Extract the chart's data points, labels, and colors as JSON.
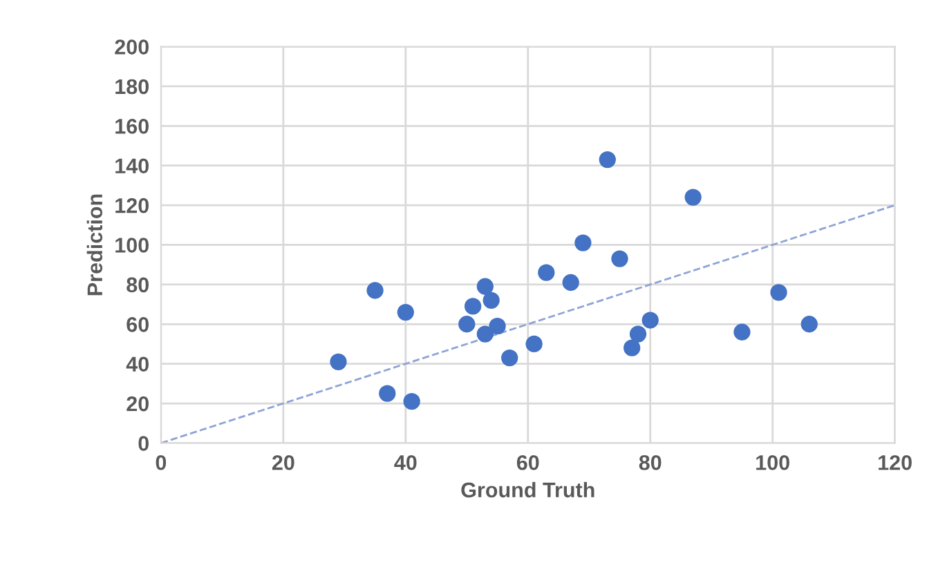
{
  "chart_data": {
    "type": "scatter",
    "xlabel": "Ground Truth",
    "ylabel": "Prediction",
    "xlim": [
      0,
      120
    ],
    "xticks": [
      0,
      20,
      40,
      60,
      80,
      100,
      120
    ],
    "ylim": [
      0,
      200
    ],
    "yticks": [
      0,
      20,
      40,
      60,
      80,
      100,
      120,
      140,
      160,
      180,
      200
    ],
    "grid": true,
    "legend": false,
    "series": [
      {
        "marker": "circle",
        "color": "#4472c4",
        "x": [
          29,
          35,
          37,
          40,
          41,
          50,
          51,
          53,
          53,
          54,
          55,
          57,
          61,
          63,
          67,
          69,
          73,
          75,
          77,
          78,
          80,
          87,
          95,
          101,
          106
        ],
        "values": [
          41,
          77,
          25,
          66,
          21,
          60,
          69,
          79,
          55,
          72,
          59,
          43,
          50,
          86,
          81,
          101,
          143,
          93,
          48,
          55,
          62,
          124,
          56,
          76,
          60
        ]
      },
      {
        "type": "line",
        "color": "#8fa3d6",
        "line_style": "dashed",
        "marker": "none",
        "x": [
          0,
          120
        ],
        "values": [
          0,
          120
        ]
      }
    ]
  }
}
